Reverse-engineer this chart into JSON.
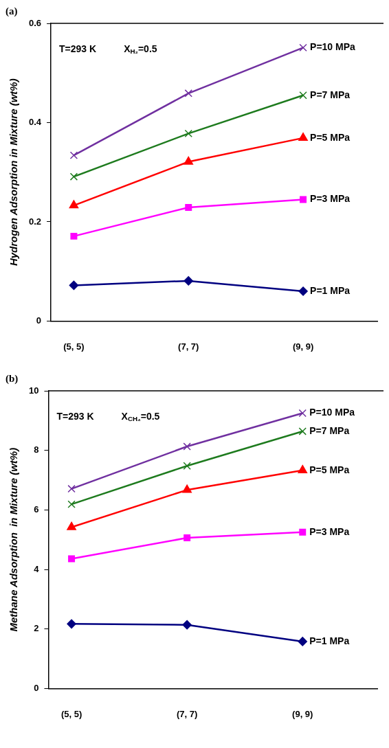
{
  "chart_data": [
    {
      "type": "line",
      "title": "(a)",
      "ylabel": "Hydrogen Adsorption in Mixture (wt%)",
      "categories": [
        "(5, 5)",
        "(7, 7)",
        "(9, 9)"
      ],
      "ylim": [
        0,
        0.6
      ],
      "yticks": [
        0,
        0.2,
        0.4,
        0.6
      ],
      "grid": false,
      "legend": false,
      "annotations": [
        "T=293 K",
        "X$_{H₂}$=0.5"
      ],
      "series": [
        {
          "name": "P=10 MPa",
          "color": "#7030a0",
          "marker": "cross",
          "values": [
            0.334,
            0.459,
            0.551
          ]
        },
        {
          "name": "P=7 MPa",
          "color": "#1e7b1e",
          "marker": "cross",
          "values": [
            0.291,
            0.378,
            0.455
          ]
        },
        {
          "name": "P=5 MPa",
          "color": "#ff0000",
          "marker": "triangle",
          "values": [
            0.233,
            0.321,
            0.369
          ]
        },
        {
          "name": "P=3 MPa",
          "color": "#ff00ff",
          "marker": "square",
          "values": [
            0.171,
            0.229,
            0.245
          ]
        },
        {
          "name": "P=1 MPa",
          "color": "#000080",
          "marker": "diamond",
          "values": [
            0.072,
            0.081,
            0.06
          ]
        }
      ]
    },
    {
      "type": "line",
      "title": "(b)",
      "ylabel": "Methane Adsorption  in Mixture (wt%)",
      "categories": [
        "(5, 5)",
        "(7, 7)",
        "(9, 9)"
      ],
      "ylim": [
        0,
        10
      ],
      "yticks": [
        0,
        2,
        4,
        6,
        8,
        10
      ],
      "grid": false,
      "legend": false,
      "annotations": [
        "T=293 K",
        "X$_{CH₄}$=0.5"
      ],
      "series": [
        {
          "name": "P=10 MPa",
          "color": "#7030a0",
          "marker": "cross",
          "values": [
            6.71,
            8.13,
            9.25
          ]
        },
        {
          "name": "P=7 MPa",
          "color": "#1e7b1e",
          "marker": "cross",
          "values": [
            6.19,
            7.48,
            8.64
          ]
        },
        {
          "name": "P=5 MPa",
          "color": "#ff0000",
          "marker": "triangle",
          "values": [
            5.42,
            6.67,
            7.33
          ]
        },
        {
          "name": "P=3 MPa",
          "color": "#ff00ff",
          "marker": "square",
          "values": [
            4.36,
            5.06,
            5.25
          ]
        },
        {
          "name": "P=1 MPa",
          "color": "#000080",
          "marker": "diamond",
          "values": [
            2.17,
            2.14,
            1.58
          ]
        }
      ]
    }
  ]
}
